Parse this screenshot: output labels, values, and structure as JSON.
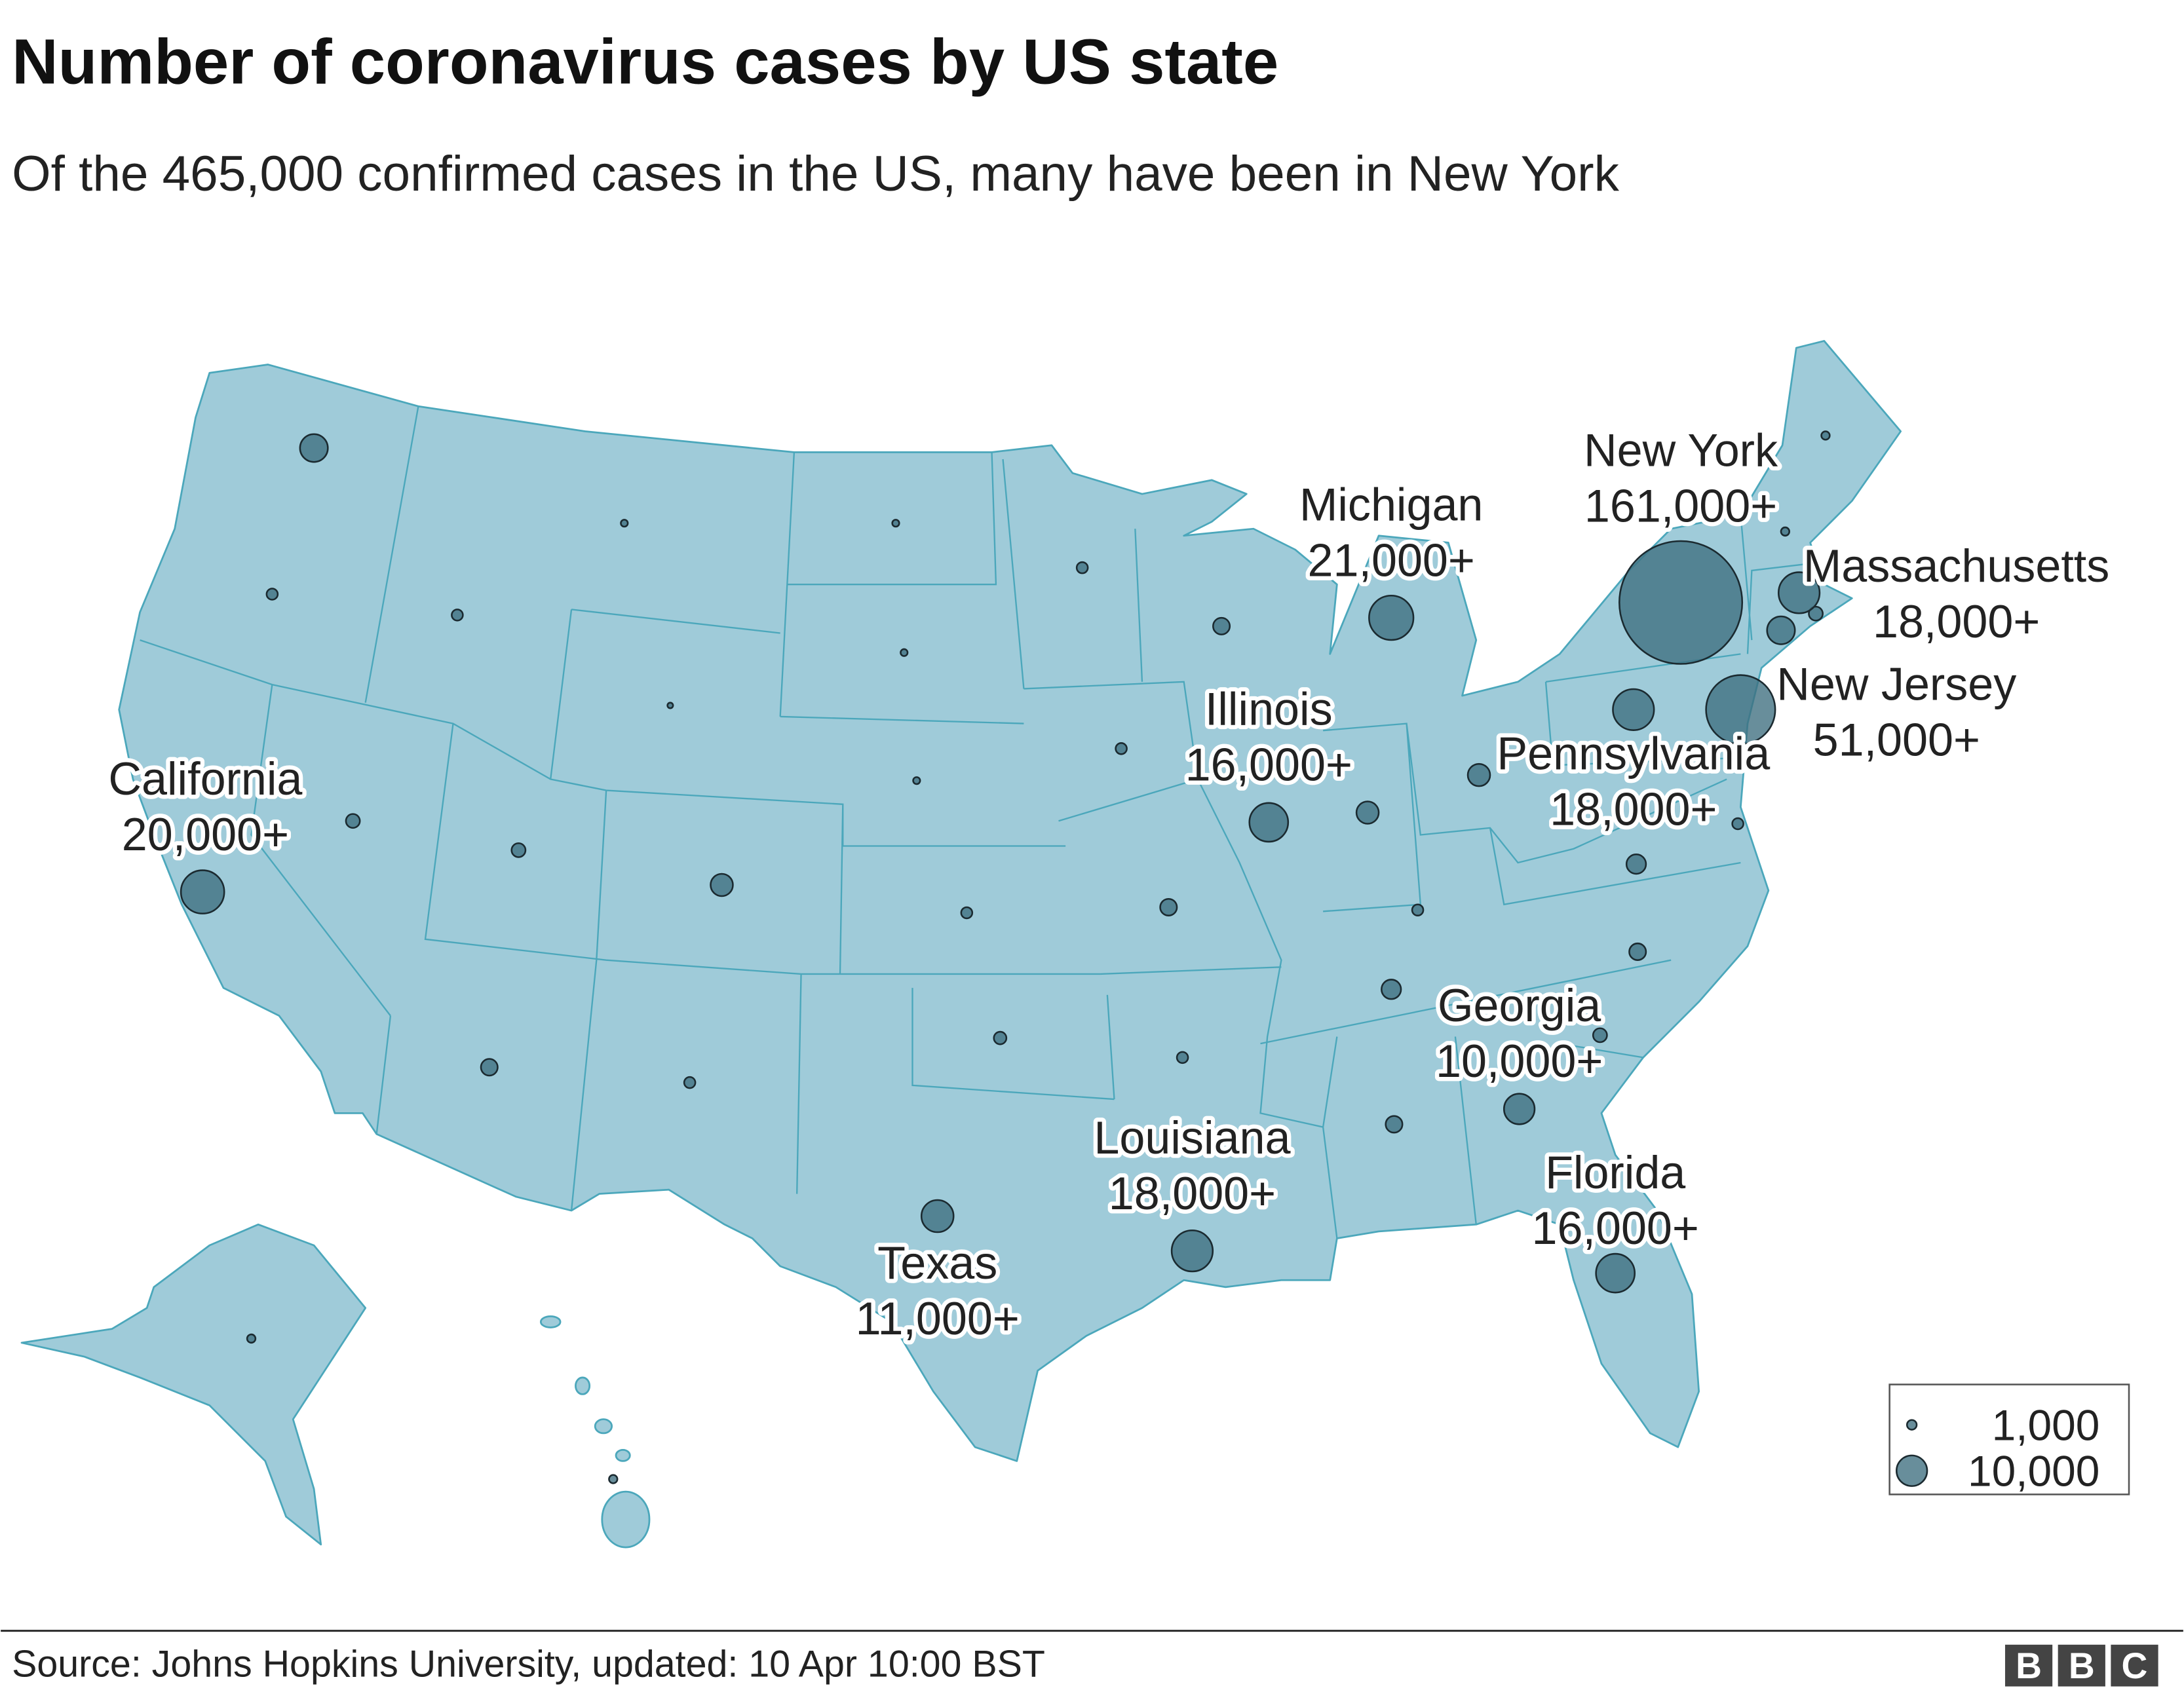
{
  "title": "Number of coronavirus cases by US state",
  "subtitle": "Of the 465,000 confirmed cases in the US, many have been in New York",
  "states": [
    {
      "name": "California",
      "value": 20000,
      "value_label": "20,000+"
    },
    {
      "name": "Michigan",
      "value": 21000,
      "value_label": "21,000+"
    },
    {
      "name": "Illinois",
      "value": 16000,
      "value_label": "16,000+"
    },
    {
      "name": "New York",
      "value": 161000,
      "value_label": "161,000+"
    },
    {
      "name": "Massachusetts",
      "value": 18000,
      "value_label": "18,000+"
    },
    {
      "name": "New Jersey",
      "value": 51000,
      "value_label": "51,000+"
    },
    {
      "name": "Pennsylvania",
      "value": 18000,
      "value_label": "18,000+"
    },
    {
      "name": "Georgia",
      "value": 10000,
      "value_label": "10,000+"
    },
    {
      "name": "Louisiana",
      "value": 18000,
      "value_label": "18,000+"
    },
    {
      "name": "Florida",
      "value": 16000,
      "value_label": "16,000+"
    },
    {
      "name": "Texas",
      "value": 11000,
      "value_label": "11,000+"
    }
  ],
  "legend": [
    {
      "value": 1000,
      "label": "1,000"
    },
    {
      "value": 10000,
      "label": "10,000"
    }
  ],
  "source": "Source: Johns Hopkins University, updated: 10 Apr 10:00 BST",
  "logo": [
    "B",
    "B",
    "C"
  ]
}
